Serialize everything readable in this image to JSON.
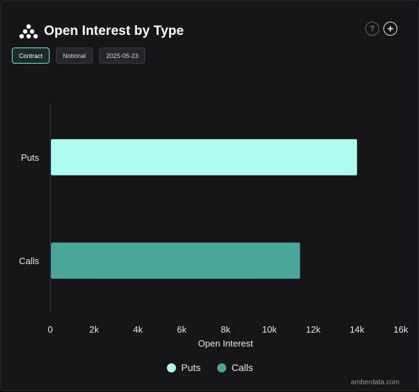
{
  "header": {
    "title": "Open Interest by Type"
  },
  "actions": {
    "help_glyph": "?",
    "add_glyph": "+",
    "help_icon": "question-circle-icon",
    "add_icon": "plus-circle-icon"
  },
  "toolbar": {
    "chips": [
      {
        "label": "Contract",
        "active": true
      },
      {
        "label": "Notional",
        "active": false
      },
      {
        "label": "2025-05-23",
        "active": false
      }
    ]
  },
  "colors": {
    "puts": "#adfcef",
    "calls": "#4aa699",
    "background": "#161618",
    "axis": "#3a3a3e"
  },
  "chart_data": {
    "type": "bar",
    "orientation": "horizontal",
    "categories": [
      "Puts",
      "Calls"
    ],
    "series": [
      {
        "name": "Puts",
        "values": [
          14000,
          null
        ]
      },
      {
        "name": "Calls",
        "values": [
          null,
          11400
        ]
      }
    ],
    "values": [
      14000,
      11400
    ],
    "xlabel": "Open Interest",
    "ylabel": "",
    "xlim": [
      0,
      16000
    ],
    "xticks": [
      "0",
      "2k",
      "4k",
      "6k",
      "8k",
      "10k",
      "12k",
      "14k",
      "16k"
    ],
    "grid": false,
    "legend": "bottom-center"
  },
  "legend": {
    "items": [
      {
        "label": "Puts"
      },
      {
        "label": "Calls"
      }
    ]
  },
  "footer": {
    "source": "amberdata.com"
  }
}
